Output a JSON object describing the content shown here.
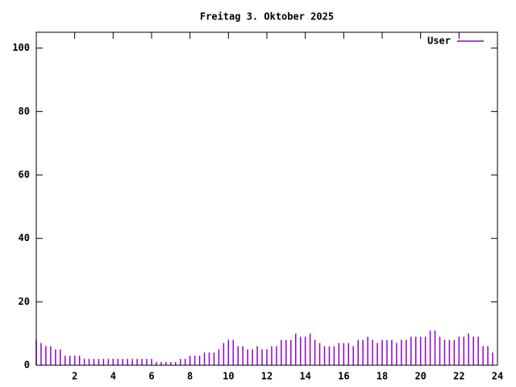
{
  "chart_data": {
    "type": "impulse",
    "title": "Freitag 3. Oktober 2025",
    "x": [
      0,
      0.25,
      0.5,
      0.75,
      1,
      1.25,
      1.5,
      1.75,
      2,
      2.25,
      2.5,
      2.75,
      3,
      3.25,
      3.5,
      3.75,
      4,
      4.25,
      4.5,
      4.75,
      5,
      5.25,
      5.5,
      5.75,
      6,
      6.25,
      6.5,
      6.75,
      7,
      7.25,
      7.5,
      7.75,
      8,
      8.25,
      8.5,
      8.75,
      9,
      9.25,
      9.5,
      9.75,
      10,
      10.25,
      10.5,
      10.75,
      11,
      11.25,
      11.5,
      11.75,
      12,
      12.25,
      12.5,
      12.75,
      13,
      13.25,
      13.5,
      13.75,
      14,
      14.25,
      14.5,
      14.75,
      15,
      15.25,
      15.5,
      15.75,
      16,
      16.25,
      16.5,
      16.75,
      17,
      17.25,
      17.5,
      17.75,
      18,
      18.25,
      18.5,
      18.75,
      19,
      19.25,
      19.5,
      19.75,
      20,
      20.25,
      20.5,
      20.75,
      21,
      21.25,
      21.5,
      21.75,
      22,
      22.25,
      22.5,
      22.75,
      23,
      23.25,
      23.5,
      23.75
    ],
    "series": [
      {
        "name": "User",
        "color": "#9400d3",
        "values": [
          8,
          7,
          6,
          6,
          5,
          5,
          3,
          3,
          3,
          3,
          2,
          2,
          2,
          2,
          2,
          2,
          2,
          2,
          2,
          2,
          2,
          2,
          2,
          2,
          2,
          1,
          1,
          1,
          1,
          1,
          2,
          2,
          3,
          3,
          3,
          4,
          4,
          4,
          5,
          7,
          8,
          8,
          6,
          6,
          5,
          5,
          6,
          5,
          5,
          6,
          6,
          8,
          8,
          8,
          10,
          9,
          9,
          10,
          8,
          7,
          6,
          6,
          6,
          7,
          7,
          7,
          6,
          8,
          8,
          9,
          8,
          7,
          8,
          8,
          8,
          7,
          8,
          8,
          9,
          9,
          9,
          9,
          11,
          11,
          9,
          8,
          8,
          8,
          9,
          9,
          10,
          9,
          9,
          6,
          6,
          4
        ]
      }
    ],
    "xlim": [
      0,
      24
    ],
    "xticks": [
      2,
      4,
      6,
      8,
      10,
      12,
      14,
      16,
      18,
      20,
      22,
      24
    ],
    "ylim": [
      0,
      105
    ],
    "yticks": [
      0,
      20,
      40,
      60,
      80,
      100
    ],
    "legend": "top-right"
  }
}
